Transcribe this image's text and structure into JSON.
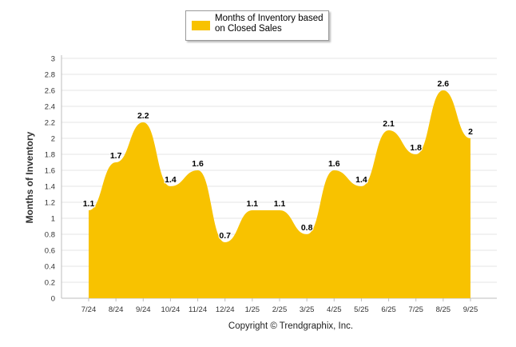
{
  "chart_data": {
    "type": "area",
    "categories": [
      "7/24",
      "8/24",
      "9/24",
      "10/24",
      "11/24",
      "12/24",
      "1/25",
      "2/25",
      "3/25",
      "4/25",
      "5/25",
      "6/25",
      "7/25",
      "8/25",
      "9/25"
    ],
    "series": [
      {
        "name": "Months of Inventory based on Closed Sales",
        "values": [
          1.1,
          1.7,
          2.2,
          1.4,
          1.6,
          0.7,
          1.1,
          1.1,
          0.8,
          1.6,
          1.4,
          2.1,
          1.8,
          2.6,
          2
        ],
        "labels": [
          "1.1",
          "1.7",
          "2.2",
          "1.4",
          "1.6",
          "0.7",
          "1.1",
          "1.1",
          "0.8",
          "1.6",
          "1.4",
          "2.1",
          "1.8",
          "2.6",
          "2"
        ]
      }
    ],
    "ylabel": "Months of Inventory",
    "ylim": [
      0,
      3
    ],
    "yticks": [
      "0",
      "0.2",
      "0.4",
      "0.6",
      "0.8",
      "1",
      "1.2",
      "1.4",
      "1.6",
      "1.8",
      "2",
      "2.2",
      "2.4",
      "2.6",
      "2.8",
      "3"
    ],
    "grid": true,
    "legend_position": "top-center"
  },
  "legend": {
    "label": "Months of Inventory based on Closed Sales"
  },
  "footer": {
    "copyright": "Copyright © Trendgraphix, Inc."
  },
  "colors": {
    "area": "#F8C200",
    "grid": "#e6e6e6",
    "axis": "#bdbdbd"
  }
}
